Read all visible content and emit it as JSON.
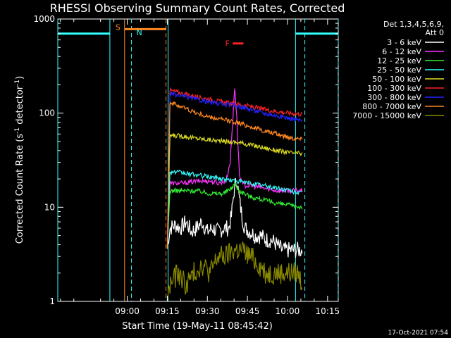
{
  "chart_data": {
    "type": "line",
    "title": "RHESSI Observing Summary Count Rates, Corrected",
    "xlabel": "Start Time (19-May-11 08:45:42)",
    "ylabel_parts": [
      "Corrected Count Rate (s",
      "-1",
      " detector",
      "-1",
      ")"
    ],
    "yscale": "log",
    "ylim": [
      1,
      1000
    ],
    "xlim_min": [
      -12,
      93
    ],
    "x_ticks": [
      {
        "m": 14,
        "label": "09:00"
      },
      {
        "m": 29,
        "label": "09:15"
      },
      {
        "m": 44,
        "label": "09:30"
      },
      {
        "m": 59,
        "label": "09:45"
      },
      {
        "m": 74,
        "label": "10:00"
      },
      {
        "m": 89,
        "label": "10:15"
      }
    ],
    "y_ticks": [
      {
        "v": 1,
        "label": "1"
      },
      {
        "v": 10,
        "label": "10"
      },
      {
        "v": 100,
        "label": "100"
      },
      {
        "v": 1000,
        "label": "1000"
      }
    ],
    "legend": {
      "placement": "right",
      "header": [
        "Det 1,3,4,5,6,9,",
        "Att 0"
      ],
      "entries": [
        {
          "label": "3 - 6 keV",
          "color": "#ffffff"
        },
        {
          "label": "6 - 12 keV",
          "color": "#ff33ff"
        },
        {
          "label": "12 - 25 keV",
          "color": "#33ee33"
        },
        {
          "label": "25 - 50 keV",
          "color": "#33ffff"
        },
        {
          "label": "50 - 100 keV",
          "color": "#dddd22"
        },
        {
          "label": "100 - 300 keV",
          "color": "#ff2222"
        },
        {
          "label": "300 - 800 keV",
          "color": "#2222ff"
        },
        {
          "label": "800 - 7000 keV",
          "color": "#ff8822"
        },
        {
          "label": "7000 - 15000 keV",
          "color": "#888800"
        }
      ]
    },
    "series": [
      {
        "name": "3 - 6 keV",
        "color": "#ffffff",
        "x": [
          29,
          30,
          32,
          34,
          36,
          38,
          40,
          42,
          44,
          46,
          48,
          50,
          52,
          53,
          54,
          55,
          56,
          57,
          58,
          60,
          62,
          64,
          66,
          68,
          70,
          72,
          74,
          76,
          78,
          79.5
        ],
        "y": [
          3.8,
          6,
          6.5,
          6,
          7,
          5.5,
          6,
          7,
          5.5,
          6,
          5.5,
          6,
          6,
          8,
          15,
          20,
          12,
          8,
          6,
          5.5,
          5,
          5,
          4.5,
          4.5,
          4,
          3.5,
          3.5,
          3.5,
          3.5,
          3.5
        ]
      },
      {
        "name": "6 - 12 keV",
        "color": "#ff33ff",
        "x": [
          29,
          30,
          35,
          40,
          45,
          48,
          51,
          52.5,
          53.5,
          54.2,
          55,
          56,
          57,
          58,
          60,
          65,
          70,
          75,
          79.5
        ],
        "y": [
          3.8,
          18,
          18,
          19,
          19,
          18,
          19,
          30,
          80,
          200,
          90,
          22,
          18,
          17,
          17,
          16,
          15,
          15,
          15
        ]
      },
      {
        "name": "12 - 25 keV",
        "color": "#33ee33",
        "x": [
          29,
          30,
          35,
          40,
          45,
          50,
          53,
          54.3,
          56,
          60,
          65,
          70,
          75,
          79.5
        ],
        "y": [
          3.8,
          15,
          15,
          15,
          14,
          14,
          16,
          18,
          15,
          13,
          12,
          11,
          10.5,
          10
        ]
      },
      {
        "name": "25 - 50 keV",
        "color": "#33ffff",
        "x": [
          29,
          30,
          35,
          40,
          45,
          50,
          55,
          60,
          65,
          70,
          75,
          79.5
        ],
        "y": [
          3.8,
          24,
          23,
          22,
          21,
          20,
          19,
          18,
          17,
          16,
          15,
          14
        ]
      },
      {
        "name": "50 - 100 keV",
        "color": "#dddd22",
        "x": [
          29,
          30,
          35,
          40,
          45,
          50,
          55,
          60,
          65,
          70,
          75,
          79.5
        ],
        "y": [
          3.8,
          58,
          57,
          54,
          52,
          50,
          49,
          46,
          43,
          40,
          38,
          37
        ]
      },
      {
        "name": "100 - 300 keV",
        "color": "#ff2222",
        "x": [
          29,
          30,
          35,
          40,
          45,
          50,
          55,
          60,
          65,
          70,
          75,
          79.5
        ],
        "y": [
          3.8,
          175,
          160,
          150,
          140,
          130,
          125,
          118,
          110,
          104,
          100,
          97
        ]
      },
      {
        "name": "300 - 800 keV",
        "color": "#2222ff",
        "x": [
          29,
          30,
          35,
          40,
          45,
          50,
          55,
          60,
          65,
          70,
          75,
          79.5
        ],
        "y": [
          3.8,
          160,
          150,
          140,
          130,
          124,
          120,
          110,
          100,
          94,
          88,
          83
        ]
      },
      {
        "name": "800 - 7000 keV",
        "color": "#ff8822",
        "x": [
          29,
          30,
          35,
          40,
          45,
          50,
          55,
          60,
          65,
          70,
          75,
          79.5
        ],
        "y": [
          3.8,
          130,
          115,
          100,
          90,
          85,
          80,
          72,
          65,
          60,
          55,
          53
        ]
      },
      {
        "name": "7000 - 15000 keV",
        "color": "#888800",
        "x": [
          29,
          30,
          33,
          36,
          39,
          42,
          45,
          48,
          51,
          54,
          57,
          60,
          63,
          66,
          69,
          72,
          75,
          78,
          79.5
        ],
        "y": [
          1,
          1.5,
          2,
          1.5,
          2,
          2.5,
          2,
          3,
          3,
          3.5,
          3.5,
          3,
          2.5,
          2,
          2,
          2,
          2,
          2,
          1.5
        ]
      }
    ],
    "annotations": {
      "cyan_bar_color": "#33ffff",
      "orange_color": "#ff8822",
      "red_color": "#ff2222",
      "night_solid": [
        {
          "x1": -12,
          "x2": 7.5,
          "v": 700
        },
        {
          "x1": 77,
          "x2": 93,
          "v": 700
        }
      ],
      "night_dash": [
        {
          "x1": 77,
          "x2": 93,
          "v": 700
        }
      ],
      "night_vlines": [
        {
          "x": -12,
          "style": "solid"
        },
        {
          "x": 7.5,
          "style": "solid"
        },
        {
          "x": 77,
          "style": "solid"
        },
        {
          "x": 93,
          "style": "dashed"
        }
      ],
      "saa_lines": [
        {
          "x": 13,
          "style": "solid",
          "color": "#ff8822"
        },
        {
          "x": 15.6,
          "style": "dashed",
          "color": "#33ffff"
        },
        {
          "x": 28.5,
          "style": "dashed",
          "color": "#ff8822"
        },
        {
          "x": 29.3,
          "style": "solid",
          "color": "#33ffff"
        },
        {
          "x": 80.5,
          "style": "dashed",
          "color": "#33ffff"
        }
      ],
      "saa_bar": {
        "x1": 13,
        "x2": 28.5,
        "v": 780
      },
      "labels": [
        {
          "text": "S",
          "x": 10.5,
          "v": 820,
          "color": "#ff8822"
        },
        {
          "text": "N",
          "x": 18.5,
          "v": 720,
          "color": "#33ffff"
        },
        {
          "text": "F",
          "x": 51.5,
          "v": 550,
          "color": "#ff2222"
        }
      ],
      "flare_bar": {
        "x1": 53.5,
        "x2": 57.5,
        "v": 550
      }
    },
    "timestamp": "17-Oct-2021 07:54"
  }
}
